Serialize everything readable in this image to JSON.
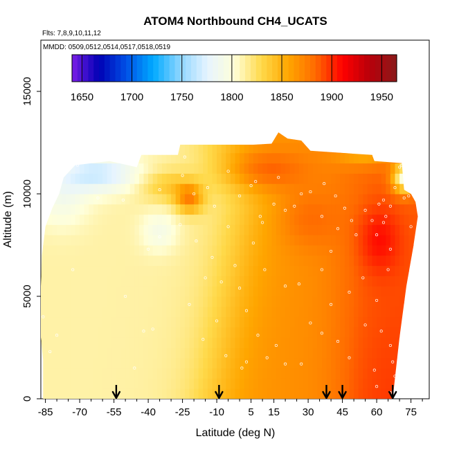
{
  "chart_data": {
    "type": "heatmap",
    "title": "ATOM4 Northbound CH4_UCATS",
    "annotations": {
      "flights": "Flts: 7,8,9,10,11,12",
      "dates": "MMDD: 0509,0512,0514,0517,0518,0519"
    },
    "xlabel": "Latitude (deg N)",
    "ylabel": "Altitude (m)",
    "xlim": [
      -87,
      83
    ],
    "ylim": [
      0,
      17500
    ],
    "x_ticks": [
      -85,
      -70,
      -55,
      -40,
      -25,
      -10,
      5,
      15,
      30,
      45,
      60,
      75
    ],
    "y_ticks": [
      0,
      5000,
      10000,
      15000
    ],
    "colorbar": {
      "ticks": [
        1650,
        1700,
        1750,
        1800,
        1850,
        1900,
        1950
      ],
      "range": [
        1640,
        1965
      ],
      "colors": [
        "#7a1ee6",
        "#0000b4",
        "#0050e6",
        "#00aaff",
        "#8fd6ff",
        "#e6f4ff",
        "#ffffd9",
        "#ffd94a",
        "#ffa600",
        "#ff6a00",
        "#ff0000",
        "#b8000a",
        "#8b1a1a"
      ]
    },
    "arrow_latitudes": [
      -54,
      -9,
      38,
      45,
      67
    ],
    "grid": false,
    "legend": "top (colorbar)"
  }
}
